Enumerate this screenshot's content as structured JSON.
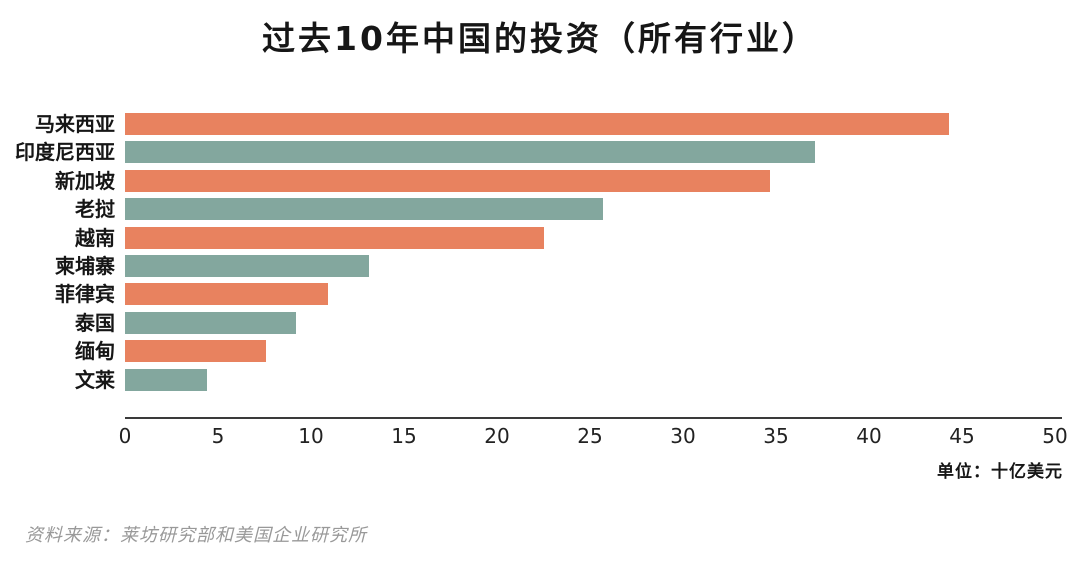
{
  "title": "过去10年中国的投资（所有行业）",
  "unit_label": "单位：十亿美元",
  "source": "资料来源：莱坊研究部和美国企业研究所",
  "colors": {
    "bar_orange": "#E8825F",
    "bar_teal": "#83A79E",
    "axis": "#3a3a3a",
    "title_text": "#161616",
    "source_text": "#999999"
  },
  "chart_data": {
    "type": "bar",
    "orientation": "horizontal",
    "title": "过去10年中国的投资（所有行业）",
    "categories": [
      "马来西亚",
      "印度尼西亚",
      "新加坡",
      "老挝",
      "越南",
      "柬埔寨",
      "菲律宾",
      "泰国",
      "缅甸",
      "文莱"
    ],
    "values": [
      44.3,
      37.1,
      34.7,
      25.7,
      22.5,
      13.1,
      10.9,
      9.2,
      7.6,
      4.4
    ],
    "bar_color_pattern": [
      "#E8825F",
      "#83A79E"
    ],
    "xlabel": "单位：十亿美元",
    "ylabel": "",
    "xlim": [
      0,
      50
    ],
    "x_ticks": [
      0,
      5,
      10,
      15,
      20,
      25,
      30,
      35,
      40,
      45,
      50
    ],
    "grid": false,
    "legend": null,
    "unit": "十亿美元"
  }
}
